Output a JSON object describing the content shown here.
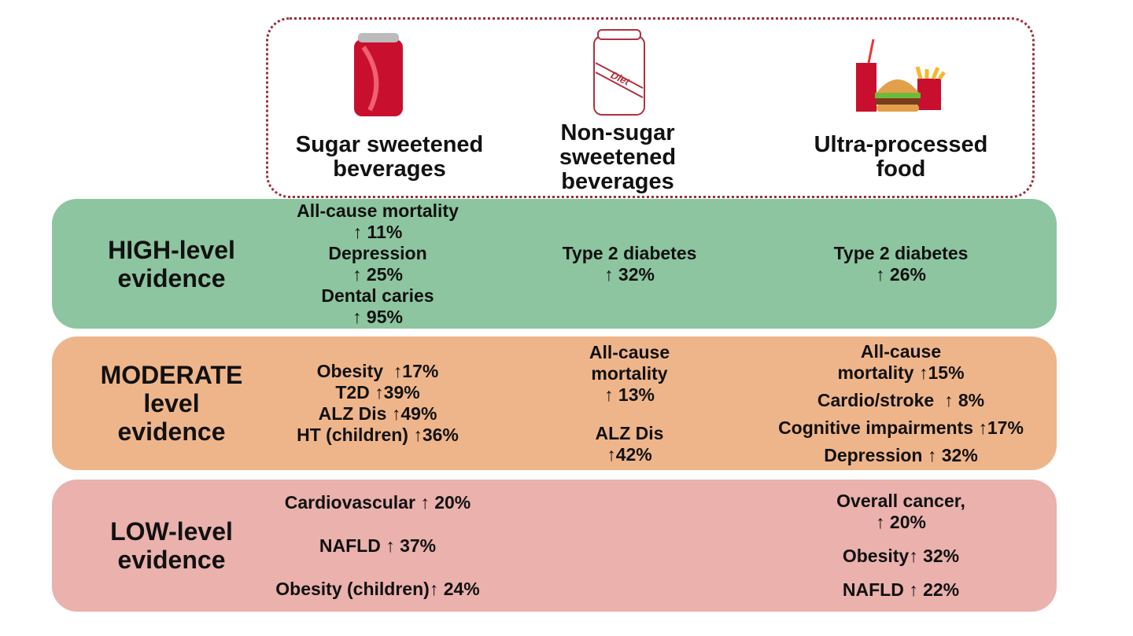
{
  "headers": [
    {
      "lines": [
        "Sugar sweetened",
        "beverages"
      ]
    },
    {
      "lines": [
        "Non-sugar",
        "sweetened",
        "beverages"
      ]
    },
    {
      "lines": [
        "Ultra-processed",
        "food"
      ]
    }
  ],
  "diet_label": "Diet",
  "rows": [
    {
      "label": [
        "HIGH-level",
        "evidence"
      ],
      "cells": [
        {
          "items": [
            [
              "All-cause mortality",
              "↑ 11%"
            ],
            [
              "Depression",
              "↑ 25%"
            ],
            [
              "Dental caries",
              "↑ 95%"
            ]
          ]
        },
        {
          "items": [
            [
              "Type 2 diabetes",
              "↑ 32%"
            ]
          ]
        },
        {
          "items": [
            [
              "Type 2 diabetes",
              "↑ 26%"
            ]
          ]
        }
      ]
    },
    {
      "label": [
        "MODERATE",
        "level",
        "evidence"
      ],
      "cells": [
        {
          "items": [
            [
              "Obesity  ↑17%"
            ],
            [
              "T2D ↑39%"
            ],
            [
              "ALZ Dis ↑49%"
            ],
            [
              "HT (children) ↑36%"
            ]
          ]
        },
        {
          "items": [
            [
              "All-cause",
              "mortality",
              "↑ 13%"
            ],
            [
              "ALZ Dis",
              "↑42%"
            ]
          ]
        },
        {
          "items": [
            [
              "All-cause",
              "mortality ↑15%"
            ],
            [
              "Cardio/stroke  ↑ 8%"
            ],
            [
              "Cognitive impairments ↑17%"
            ],
            [
              "Depression ↑ 32%"
            ]
          ]
        }
      ]
    },
    {
      "label": [
        "LOW-level",
        "evidence"
      ],
      "cells": [
        {
          "items": [
            [
              "Cardiovascular ↑ 20%"
            ],
            [
              "NAFLD ↑ 37%"
            ],
            [
              "Obesity (children)↑ 24%"
            ]
          ]
        },
        null,
        {
          "items": [
            [
              "Overall cancer,",
              "↑ 20%"
            ],
            [
              "Obesity↑ 32%"
            ],
            [
              "NAFLD ↑ 22%"
            ]
          ]
        }
      ]
    }
  ]
}
